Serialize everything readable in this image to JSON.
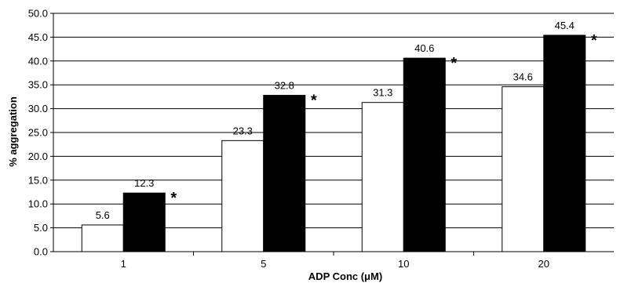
{
  "chart_data": {
    "type": "bar",
    "title": "",
    "xlabel": "ADP Conc (μM)",
    "ylabel": "% aggregation",
    "categories": [
      "1",
      "5",
      "10",
      "20"
    ],
    "ylim": [
      0,
      50
    ],
    "ytick_step": 5,
    "ytick_labels": [
      "0.0",
      "5.0",
      "10.0",
      "15.0",
      "20.0",
      "25.0",
      "30.0",
      "35.0",
      "40.0",
      "45.0",
      "50.0"
    ],
    "grid": true,
    "legend": "none",
    "series": [
      {
        "values": [
          5.6,
          23.3,
          31.3,
          34.6
        ],
        "labels": [
          "5.6",
          "23.3",
          "31.3",
          "34.6"
        ],
        "color": "#ffffff"
      },
      {
        "values": [
          12.3,
          32.8,
          40.6,
          45.4
        ],
        "labels": [
          "12.3",
          "32.8",
          "40.6",
          "45.4"
        ],
        "color": "#000000"
      }
    ],
    "annotations": [
      {
        "category_index": 0,
        "text": "*"
      },
      {
        "category_index": 1,
        "text": "*"
      },
      {
        "category_index": 2,
        "text": "*"
      },
      {
        "category_index": 3,
        "text": "*"
      }
    ]
  }
}
